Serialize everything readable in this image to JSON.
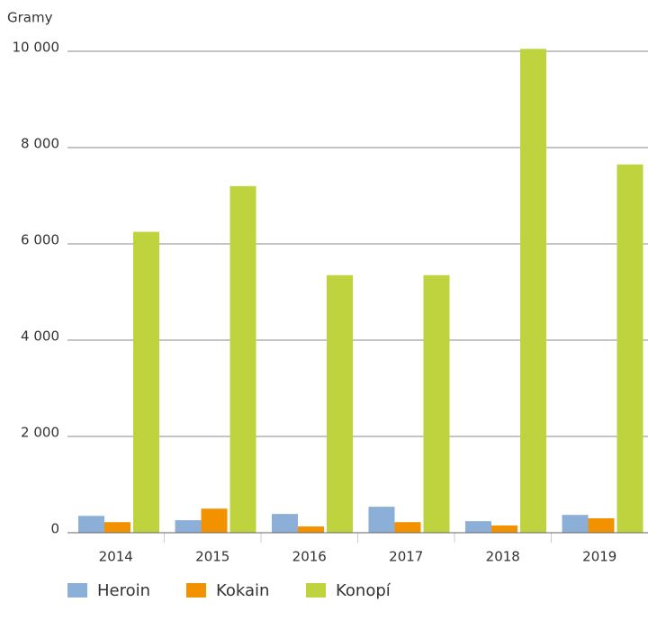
{
  "chart_data": {
    "type": "bar",
    "y_label": "Gramy",
    "categories": [
      "2014",
      "2015",
      "2016",
      "2017",
      "2018",
      "2019"
    ],
    "series": [
      {
        "name": "Heroin",
        "color": "#8cafd8",
        "values": [
          350,
          260,
          390,
          540,
          240,
          370
        ]
      },
      {
        "name": "Kokain",
        "color": "#f39200",
        "values": [
          220,
          500,
          130,
          220,
          150,
          300
        ]
      },
      {
        "name": "Konopí",
        "color": "#bed33e",
        "values": [
          6250,
          7200,
          5350,
          5350,
          10050,
          7650
        ]
      }
    ],
    "ylim": [
      0,
      10000
    ],
    "yticks": [
      0,
      {
        "value": 2000,
        "label": "2 000"
      },
      {
        "value": 4000,
        "label": "4 000"
      },
      {
        "value": 6000,
        "label": "6 000"
      },
      {
        "value": 8000,
        "label": "8 000"
      },
      {
        "value": 10000,
        "label": "10 000"
      }
    ],
    "grid": true,
    "legend": "bottom"
  }
}
